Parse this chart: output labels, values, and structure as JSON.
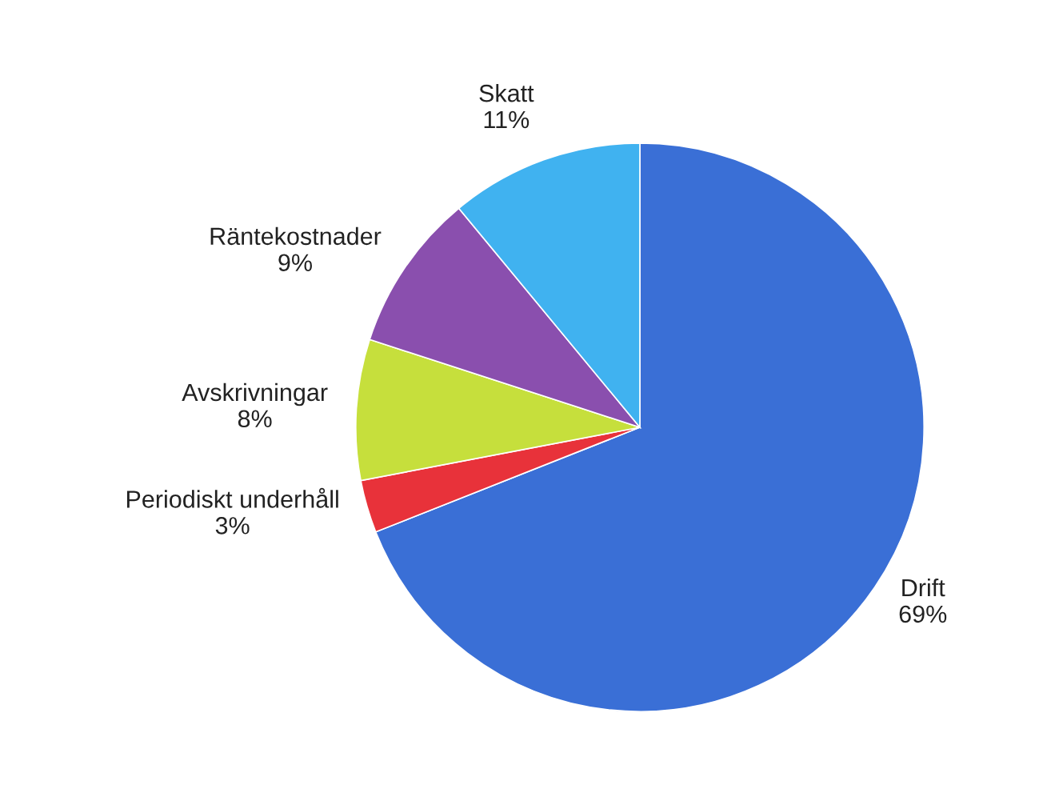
{
  "chart_data": {
    "type": "pie",
    "categories": [
      "Drift",
      "Periodiskt underhåll",
      "Avskrivningar",
      "Räntekostnader",
      "Skatt"
    ],
    "values": [
      69,
      3,
      8,
      9,
      11
    ],
    "colors": [
      "#3a6fd6",
      "#e8323a",
      "#c6df3c",
      "#8a4fae",
      "#40b2f0"
    ],
    "value_labels": [
      "69%",
      "3%",
      "8%",
      "9%",
      "11%"
    ]
  }
}
